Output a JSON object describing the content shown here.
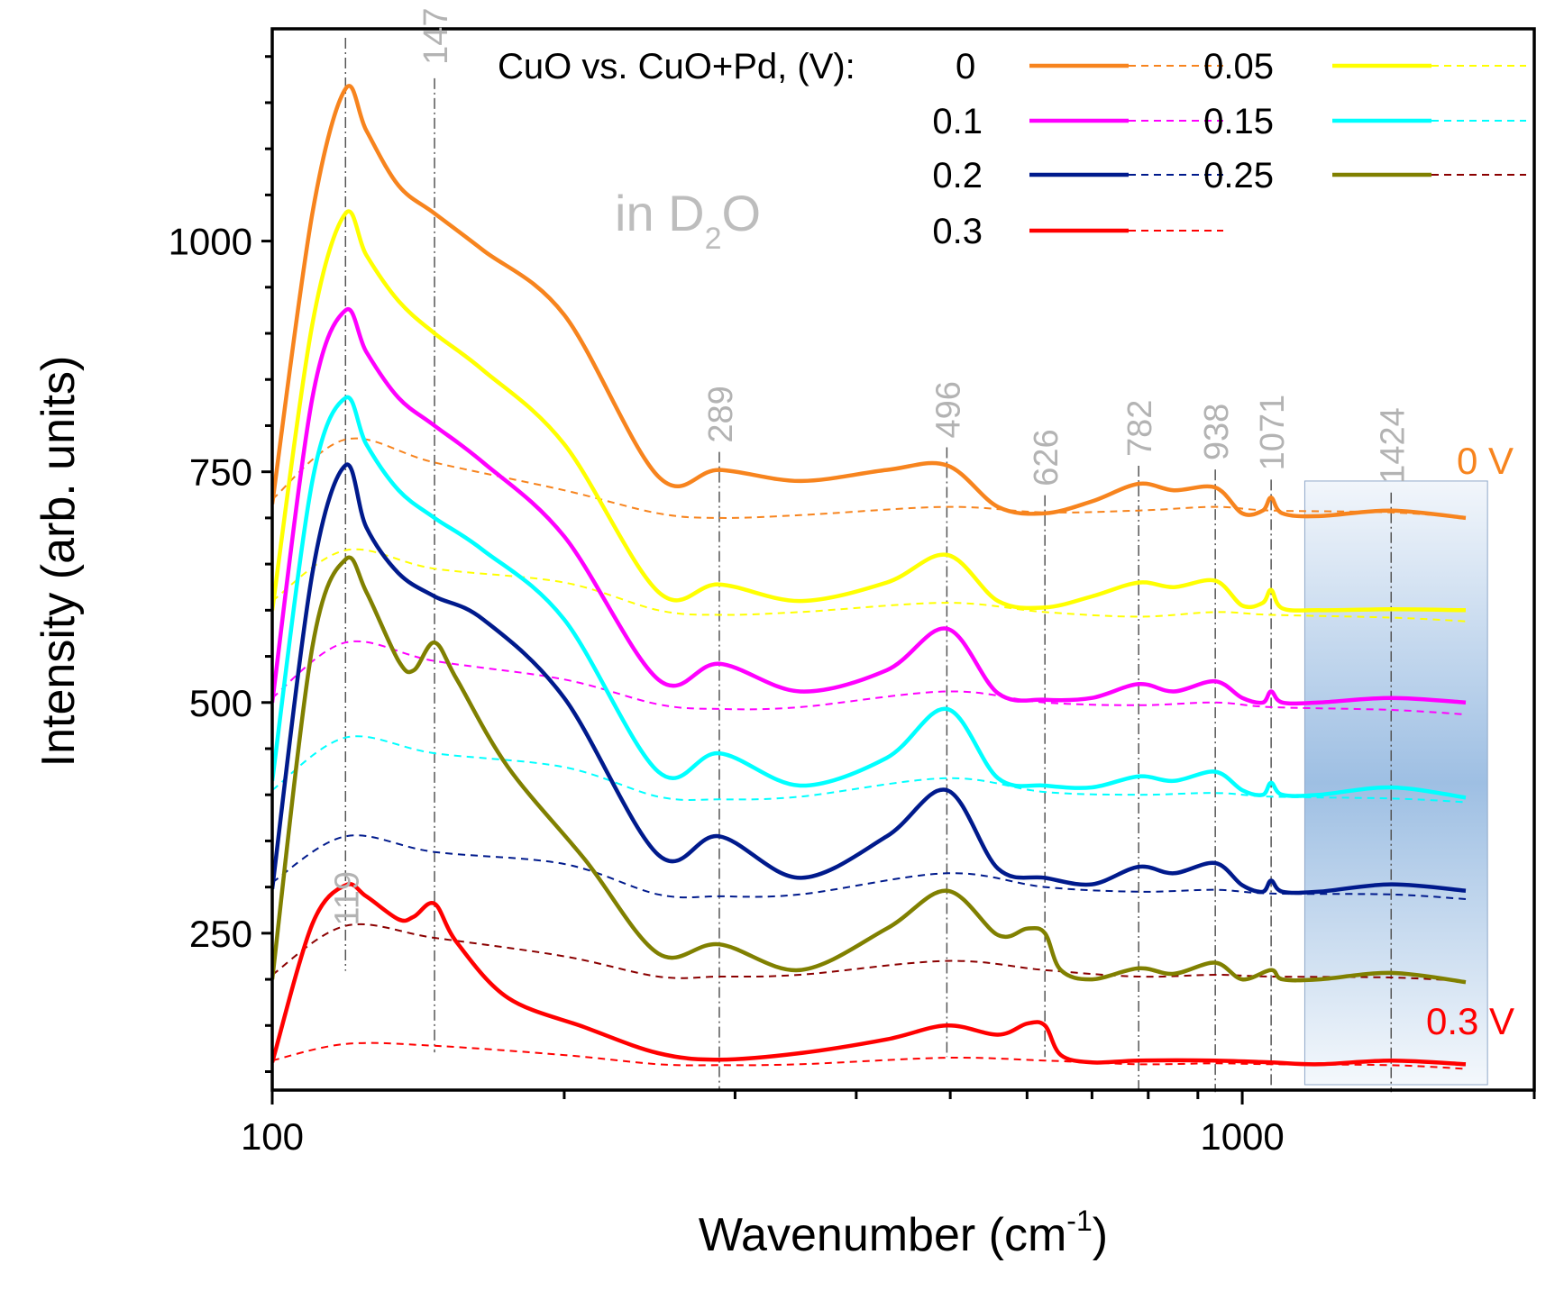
{
  "chart_data": {
    "type": "line",
    "title": "",
    "xlabel": "Wavenumber (cm",
    "xlabel_sup": "-1",
    "xlabel_tail": ")",
    "ylabel": "Intensity (arb. units)",
    "x_scale": "log",
    "xlim": [
      100,
      2000
    ],
    "ylim": [
      80,
      1230
    ],
    "x_ticks": [
      100,
      1000
    ],
    "x_tick_labels": [
      "100",
      "1000"
    ],
    "y_ticks": [
      250,
      500,
      750,
      1000
    ],
    "y_tick_labels": [
      "250",
      "500",
      "750",
      "1000"
    ],
    "annotation_text": "in D",
    "annotation_sub": "2",
    "annotation_tail": "O",
    "legend_title": "CuO vs. CuO+Pd, (V):",
    "label_top": "0 V",
    "label_bottom": "0.3 V",
    "highlight_range": [
      1160,
      1790
    ],
    "peaks": [
      {
        "x": 119,
        "label": "119"
      },
      {
        "x": 147,
        "label": "147"
      },
      {
        "x": 289,
        "label": "289"
      },
      {
        "x": 496,
        "label": "496"
      },
      {
        "x": 626,
        "label": "626"
      },
      {
        "x": 782,
        "label": "782"
      },
      {
        "x": 938,
        "label": "938"
      },
      {
        "x": 1071,
        "label": "1071"
      },
      {
        "x": 1424,
        "label": "1424"
      }
    ],
    "series": [
      {
        "name": "0",
        "color": "#f7841e",
        "style": "solid",
        "x": [
          100,
          110,
          119,
          125,
          135,
          147,
          165,
          200,
          250,
          289,
          350,
          430,
          496,
          560,
          626,
          700,
          782,
          850,
          938,
          1000,
          1050,
          1071,
          1100,
          1200,
          1424,
          1700
        ],
        "y": [
          715,
          1030,
          1165,
          1120,
          1060,
          1030,
          990,
          920,
          745,
          752,
          740,
          752,
          757,
          712,
          705,
          718,
          737,
          730,
          733,
          705,
          708,
          722,
          705,
          702,
          708,
          700
        ]
      },
      {
        "name": "0 CuO+Pd",
        "color": "#f7841e",
        "style": "dashed",
        "x": [
          100,
          119,
          147,
          200,
          250,
          289,
          350,
          496,
          626,
          782,
          938,
          1071,
          1424,
          1700
        ],
        "y": [
          720,
          785,
          760,
          730,
          705,
          700,
          703,
          712,
          706,
          708,
          712,
          708,
          706,
          700
        ]
      },
      {
        "name": "0.05",
        "color": "#ffff00",
        "style": "solid",
        "x": [
          100,
          110,
          119,
          125,
          135,
          147,
          165,
          200,
          250,
          289,
          350,
          430,
          496,
          560,
          626,
          700,
          782,
          850,
          938,
          1000,
          1050,
          1071,
          1100,
          1200,
          1424,
          1700
        ],
        "y": [
          600,
          910,
          1030,
          985,
          935,
          900,
          860,
          780,
          620,
          628,
          610,
          630,
          660,
          610,
          603,
          615,
          630,
          625,
          632,
          605,
          608,
          622,
          602,
          600,
          601,
          600
        ]
      },
      {
        "name": "0.05 CuO+Pd",
        "color": "#ffff00",
        "style": "dashed",
        "x": [
          100,
          119,
          147,
          200,
          250,
          289,
          350,
          496,
          626,
          782,
          938,
          1071,
          1424,
          1700
        ],
        "y": [
          610,
          665,
          645,
          630,
          600,
          595,
          598,
          608,
          598,
          593,
          598,
          595,
          592,
          588
        ]
      },
      {
        "name": "0.1",
        "color": "#ff00ff",
        "style": "solid",
        "x": [
          100,
          110,
          119,
          125,
          135,
          147,
          165,
          200,
          250,
          289,
          350,
          430,
          496,
          560,
          626,
          700,
          782,
          850,
          938,
          1000,
          1050,
          1071,
          1100,
          1200,
          1424,
          1700
        ],
        "y": [
          500,
          830,
          925,
          880,
          830,
          800,
          760,
          680,
          525,
          542,
          512,
          535,
          580,
          510,
          503,
          505,
          520,
          512,
          523,
          505,
          500,
          512,
          500,
          500,
          505,
          500
        ]
      },
      {
        "name": "0.1 CuO+Pd",
        "color": "#ff00ff",
        "style": "dashed",
        "x": [
          100,
          119,
          147,
          200,
          250,
          289,
          350,
          496,
          626,
          782,
          938,
          1071,
          1424,
          1700
        ],
        "y": [
          505,
          565,
          545,
          525,
          498,
          493,
          495,
          512,
          500,
          497,
          500,
          495,
          492,
          487
        ]
      },
      {
        "name": "0.15",
        "color": "#00ffff",
        "style": "solid",
        "x": [
          100,
          110,
          119,
          125,
          135,
          147,
          165,
          200,
          250,
          289,
          350,
          430,
          496,
          560,
          626,
          700,
          782,
          850,
          938,
          1000,
          1050,
          1071,
          1100,
          1200,
          1424,
          1700
        ],
        "y": [
          415,
          740,
          830,
          780,
          730,
          700,
          665,
          590,
          425,
          445,
          410,
          440,
          493,
          418,
          410,
          408,
          420,
          415,
          425,
          405,
          400,
          413,
          400,
          400,
          408,
          397
        ]
      },
      {
        "name": "0.15 CuO+Pd",
        "color": "#00ffff",
        "style": "dashed",
        "x": [
          100,
          119,
          147,
          200,
          250,
          289,
          350,
          496,
          626,
          782,
          938,
          1071,
          1424,
          1700
        ],
        "y": [
          405,
          462,
          445,
          430,
          398,
          395,
          398,
          418,
          403,
          400,
          402,
          398,
          396,
          392
        ]
      },
      {
        "name": "0.2",
        "color": "#001a8c",
        "style": "solid",
        "x": [
          100,
          110,
          119,
          125,
          135,
          147,
          165,
          200,
          250,
          289,
          350,
          430,
          496,
          560,
          626,
          700,
          782,
          850,
          938,
          1000,
          1050,
          1071,
          1100,
          1200,
          1424,
          1700
        ],
        "y": [
          298,
          640,
          757,
          690,
          640,
          615,
          590,
          505,
          335,
          355,
          310,
          355,
          405,
          320,
          310,
          303,
          322,
          315,
          326,
          302,
          295,
          307,
          295,
          295,
          303,
          296
        ]
      },
      {
        "name": "0.2 CuO+Pd",
        "color": "#001a8c",
        "style": "dashed",
        "x": [
          100,
          119,
          147,
          200,
          250,
          289,
          350,
          496,
          626,
          782,
          938,
          1071,
          1424,
          1700
        ],
        "y": [
          305,
          355,
          338,
          325,
          292,
          290,
          292,
          315,
          300,
          295,
          297,
          293,
          292,
          287
        ]
      },
      {
        "name": "0.25",
        "color": "#808000",
        "style": "solid",
        "x": [
          100,
          110,
          119,
          125,
          135,
          140,
          147,
          155,
          175,
          210,
          250,
          289,
          350,
          430,
          496,
          560,
          600,
          626,
          650,
          700,
          782,
          850,
          938,
          1000,
          1071,
          1100,
          1200,
          1424,
          1700
        ],
        "y": [
          200,
          560,
          655,
          620,
          545,
          535,
          565,
          525,
          430,
          330,
          228,
          238,
          210,
          255,
          296,
          248,
          255,
          250,
          210,
          200,
          212,
          206,
          218,
          200,
          210,
          200,
          200,
          207,
          197
        ]
      },
      {
        "name": "0.25 CuO+Pd",
        "color": "#8b0000",
        "style": "dashed",
        "x": [
          100,
          119,
          147,
          200,
          250,
          289,
          350,
          496,
          626,
          782,
          938,
          1071,
          1424,
          1700
        ],
        "y": [
          205,
          258,
          245,
          225,
          203,
          203,
          205,
          220,
          210,
          203,
          205,
          203,
          202,
          198
        ]
      },
      {
        "name": "0.3",
        "color": "#ff0000",
        "style": "solid",
        "x": [
          100,
          110,
          119,
          125,
          135,
          140,
          147,
          155,
          175,
          210,
          250,
          289,
          350,
          430,
          496,
          560,
          600,
          626,
          650,
          700,
          782,
          938,
          1071,
          1200,
          1424,
          1700
        ],
        "y": [
          110,
          260,
          302,
          290,
          265,
          268,
          282,
          240,
          180,
          148,
          120,
          113,
          120,
          135,
          150,
          140,
          152,
          150,
          118,
          110,
          112,
          112,
          110,
          108,
          112,
          108
        ]
      },
      {
        "name": "0.3 CuO+Pd",
        "color": "#ff0000",
        "style": "dashed",
        "x": [
          100,
          119,
          147,
          200,
          250,
          289,
          350,
          496,
          626,
          782,
          938,
          1071,
          1424,
          1700
        ],
        "y": [
          112,
          130,
          128,
          118,
          108,
          107,
          108,
          115,
          112,
          108,
          109,
          108,
          107,
          103
        ]
      }
    ],
    "legend": [
      {
        "label": "0",
        "solid": "#f7841e",
        "dashed": "#f7841e"
      },
      {
        "label": "0.05",
        "solid": "#ffff00",
        "dashed": "#ffff00"
      },
      {
        "label": "0.1",
        "solid": "#ff00ff",
        "dashed": "#ff00ff"
      },
      {
        "label": "0.15",
        "solid": "#00ffff",
        "dashed": "#00ffff"
      },
      {
        "label": "0.2",
        "solid": "#001a8c",
        "dashed": "#001a8c"
      },
      {
        "label": "0.25",
        "solid": "#808000",
        "dashed": "#8b0000"
      },
      {
        "label": "0.3",
        "solid": "#ff0000",
        "dashed": "#ff0000"
      }
    ],
    "colors": {
      "peak_label": "#b3b3b3",
      "annotation": "#bdbdbd",
      "label_top": "#f7841e",
      "label_bottom": "#ff0000",
      "highlight_top": "#f2f6fb",
      "highlight_mid": "#9ebfe3",
      "axis": "#000000",
      "guide": "#555555"
    }
  }
}
